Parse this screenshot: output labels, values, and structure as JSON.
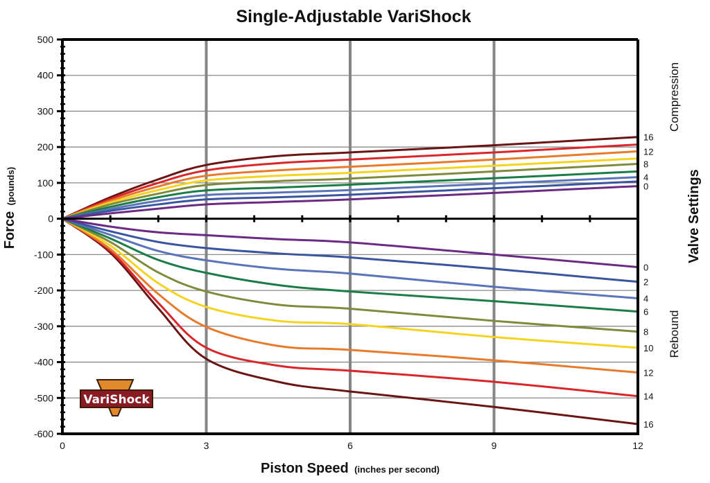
{
  "chart_data": {
    "type": "line",
    "title": "Single-Adjustable VariShock",
    "xlabel": "Piston Speed",
    "xlabel_unit": "(inches per second)",
    "ylabel": "Force",
    "ylabel_unit": "(pounds)",
    "xlim": [
      0,
      12
    ],
    "ylim": [
      -600,
      500
    ],
    "x_ticks": [
      "0",
      "3",
      "6",
      "9",
      "12"
    ],
    "y_ticks": [
      "500",
      "400",
      "300",
      "200",
      "100",
      "0",
      "-100",
      "-200",
      "-300",
      "-400",
      "-500",
      "-600"
    ],
    "grid": {
      "horizontal": true,
      "vertical": true
    },
    "right_labels": {
      "compression": "Compression",
      "valve_settings": "Valve Settings",
      "rebound": "Rebound"
    },
    "logo_text": "VariShock",
    "x": [
      0,
      1,
      2,
      3,
      4.5,
      6,
      9,
      12
    ],
    "compression": [
      {
        "setting": "16",
        "label": "16",
        "color": "#6b1414",
        "values": [
          0,
          60,
          110,
          150,
          175,
          185,
          205,
          228
        ]
      },
      {
        "setting": "14",
        "label": "",
        "color": "#d8262b",
        "values": [
          0,
          55,
          100,
          135,
          155,
          165,
          185,
          207
        ]
      },
      {
        "setting": "12",
        "label": "12",
        "color": "#e87a2c",
        "values": [
          0,
          50,
          90,
          120,
          135,
          145,
          165,
          188
        ]
      },
      {
        "setting": "10",
        "label": "",
        "color": "#f4d321",
        "values": [
          0,
          45,
          80,
          107,
          120,
          128,
          148,
          168
        ]
      },
      {
        "setting": "8",
        "label": "8",
        "color": "#808a3c",
        "values": [
          0,
          40,
          70,
          94,
          105,
          112,
          132,
          153
        ]
      },
      {
        "setting": "6",
        "label": "",
        "color": "#1b7c47",
        "values": [
          0,
          33,
          60,
          79,
          87,
          95,
          113,
          132
        ]
      },
      {
        "setting": "4",
        "label": "4",
        "color": "#5b74b9",
        "values": [
          0,
          27,
          50,
          66,
          73,
          80,
          98,
          116
        ]
      },
      {
        "setting": "2",
        "label": "",
        "color": "#3a55a0",
        "values": [
          0,
          22,
          40,
          54,
          60,
          67,
          85,
          104
        ]
      },
      {
        "setting": "0",
        "label": "0",
        "color": "#6b2a83",
        "values": [
          0,
          15,
          28,
          40,
          47,
          54,
          72,
          91
        ]
      }
    ],
    "rebound": [
      {
        "setting": "16",
        "label": "16",
        "color": "#6b1414",
        "values": [
          0,
          -95,
          -250,
          -391,
          -455,
          -482,
          -525,
          -573
        ]
      },
      {
        "setting": "14",
        "label": "14",
        "color": "#d8262b",
        "values": [
          0,
          -90,
          -235,
          -360,
          -410,
          -424,
          -455,
          -495
        ]
      },
      {
        "setting": "12",
        "label": "12",
        "color": "#e87a2c",
        "values": [
          0,
          -85,
          -210,
          -302,
          -355,
          -366,
          -395,
          -429
        ]
      },
      {
        "setting": "10",
        "label": "10",
        "color": "#f4d321",
        "values": [
          0,
          -75,
          -180,
          -246,
          -285,
          -294,
          -330,
          -360
        ]
      },
      {
        "setting": "8",
        "label": "8",
        "color": "#808a3c",
        "values": [
          0,
          -65,
          -150,
          -203,
          -240,
          -251,
          -285,
          -315
        ]
      },
      {
        "setting": "6",
        "label": "6",
        "color": "#1b7c47",
        "values": [
          0,
          -55,
          -115,
          -151,
          -185,
          -203,
          -230,
          -259
        ]
      },
      {
        "setting": "4",
        "label": "4",
        "color": "#5b74b9",
        "values": [
          0,
          -45,
          -90,
          -116,
          -140,
          -153,
          -190,
          -222
        ]
      },
      {
        "setting": "2",
        "label": "2",
        "color": "#3a55a0",
        "values": [
          0,
          -35,
          -65,
          -82,
          -97,
          -108,
          -140,
          -176
        ]
      },
      {
        "setting": "0",
        "label": "0",
        "color": "#6b2a83",
        "values": [
          0,
          -22,
          -38,
          -46,
          -57,
          -66,
          -100,
          -135
        ]
      }
    ]
  }
}
